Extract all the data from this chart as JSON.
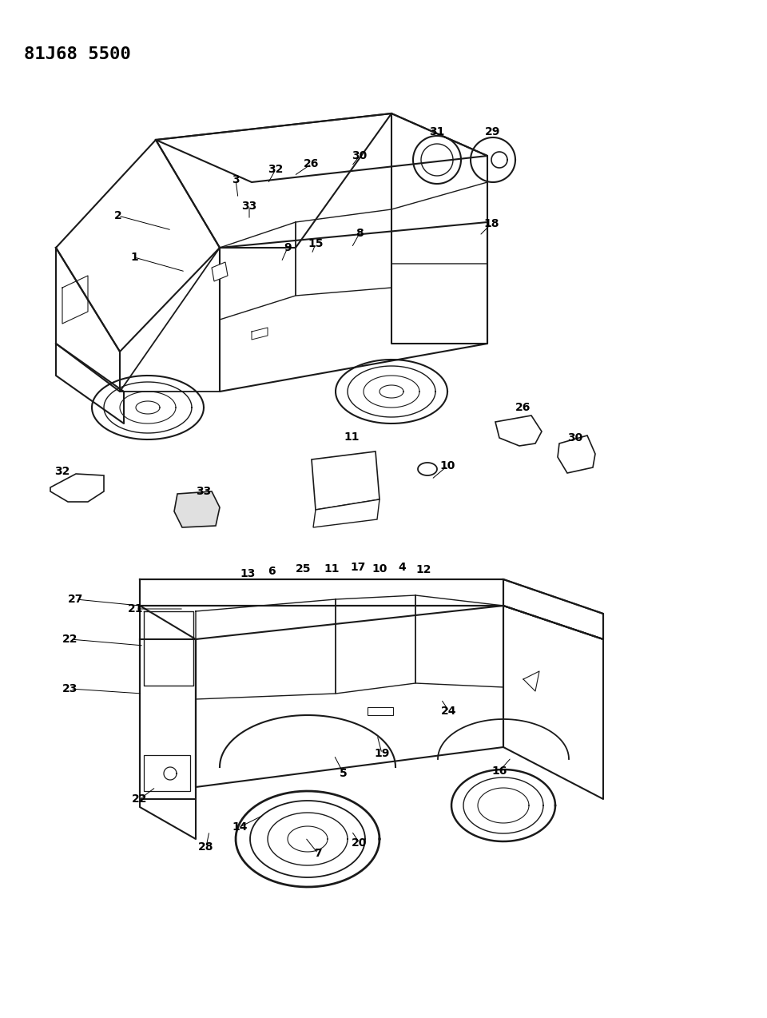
{
  "title": "81J68 5500",
  "bg": "#f5f5f0",
  "fg": "#1a1a1a",
  "fig_w": 9.6,
  "fig_h": 12.74,
  "dpi": 100
}
